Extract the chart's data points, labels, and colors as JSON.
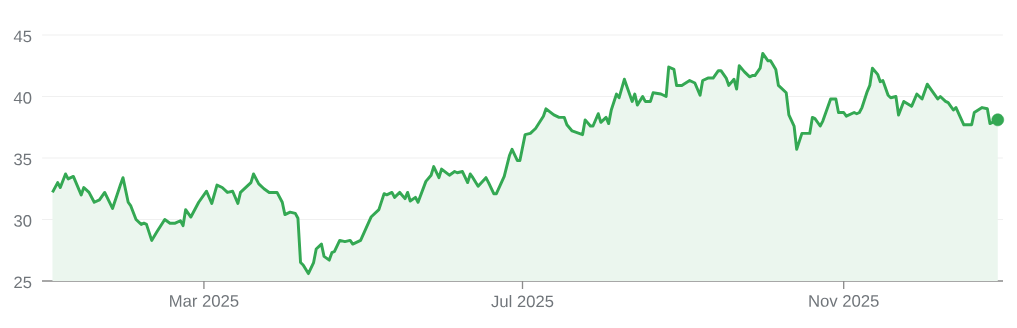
{
  "chart_data": {
    "type": "area",
    "grid": "y",
    "xlim": [
      "2024-12-29",
      "2026-01-01"
    ],
    "ylim": [
      25,
      45
    ],
    "yticks": [
      25,
      30,
      35,
      40,
      45
    ],
    "xticks": [
      {
        "value": "2025-03-01",
        "label": "Mar 2025"
      },
      {
        "value": "2025-07-01",
        "label": "Jul 2025"
      },
      {
        "value": "2025-11-01",
        "label": "Nov 2025"
      }
    ],
    "series": [
      {
        "color": "#34a853",
        "x": [
          "2025-01-02",
          "2025-01-04",
          "2025-01-05",
          "2025-01-07",
          "2025-01-08",
          "2025-01-10",
          "2025-01-13",
          "2025-01-14",
          "2025-01-16",
          "2025-01-18",
          "2025-01-20",
          "2025-01-22",
          "2025-01-25",
          "2025-01-28",
          "2025-01-29",
          "2025-01-31",
          "2025-02-01",
          "2025-02-03",
          "2025-02-05",
          "2025-02-06",
          "2025-02-07",
          "2025-02-09",
          "2025-02-11",
          "2025-02-14",
          "2025-02-16",
          "2025-02-18",
          "2025-02-20",
          "2025-02-21",
          "2025-02-22",
          "2025-02-24",
          "2025-02-27",
          "2025-03-02",
          "2025-03-04",
          "2025-03-06",
          "2025-03-08",
          "2025-03-10",
          "2025-03-12",
          "2025-03-14",
          "2025-03-15",
          "2025-03-19",
          "2025-03-20",
          "2025-03-22",
          "2025-03-24",
          "2025-03-26",
          "2025-03-29",
          "2025-03-31",
          "2025-04-01",
          "2025-04-03",
          "2025-04-05",
          "2025-04-06",
          "2025-04-07",
          "2025-04-08",
          "2025-04-10",
          "2025-04-12",
          "2025-04-13",
          "2025-04-15",
          "2025-04-16",
          "2025-04-18",
          "2025-04-19",
          "2025-04-20",
          "2025-04-22",
          "2025-04-24",
          "2025-04-26",
          "2025-04-27",
          "2025-04-30",
          "2025-05-04",
          "2025-05-07",
          "2025-05-09",
          "2025-05-10",
          "2025-05-12",
          "2025-05-13",
          "2025-05-15",
          "2025-05-17",
          "2025-05-18",
          "2025-05-19",
          "2025-05-21",
          "2025-05-22",
          "2025-05-25",
          "2025-05-27",
          "2025-05-28",
          "2025-05-30",
          "2025-05-31",
          "2025-06-03",
          "2025-06-05",
          "2025-06-06",
          "2025-06-08",
          "2025-06-10",
          "2025-06-11",
          "2025-06-12",
          "2025-06-14",
          "2025-06-17",
          "2025-06-18",
          "2025-06-20",
          "2025-06-21",
          "2025-06-24",
          "2025-06-26",
          "2025-06-27",
          "2025-06-29",
          "2025-06-30",
          "2025-07-02",
          "2025-07-04",
          "2025-07-06",
          "2025-07-09",
          "2025-07-10",
          "2025-07-13",
          "2025-07-15",
          "2025-07-17",
          "2025-07-18",
          "2025-07-20",
          "2025-07-24",
          "2025-07-25",
          "2025-07-27",
          "2025-07-28",
          "2025-07-30",
          "2025-07-31",
          "2025-08-02",
          "2025-08-03",
          "2025-08-04",
          "2025-08-06",
          "2025-08-07",
          "2025-08-09",
          "2025-08-10",
          "2025-08-12",
          "2025-08-13",
          "2025-08-14",
          "2025-08-16",
          "2025-08-17",
          "2025-08-19",
          "2025-08-20",
          "2025-08-23",
          "2025-08-25",
          "2025-08-26",
          "2025-08-28",
          "2025-08-29",
          "2025-08-31",
          "2025-09-03",
          "2025-09-05",
          "2025-09-07",
          "2025-09-08",
          "2025-09-10",
          "2025-09-12",
          "2025-09-14",
          "2025-09-15",
          "2025-09-17",
          "2025-09-18",
          "2025-09-20",
          "2025-09-21",
          "2025-09-22",
          "2025-09-24",
          "2025-09-26",
          "2025-09-27",
          "2025-09-28",
          "2025-09-30",
          "2025-10-01",
          "2025-10-03",
          "2025-10-04",
          "2025-10-06",
          "2025-10-07",
          "2025-10-10",
          "2025-10-11",
          "2025-10-13",
          "2025-10-14",
          "2025-10-16",
          "2025-10-17",
          "2025-10-19",
          "2025-10-20",
          "2025-10-21",
          "2025-10-23",
          "2025-10-24",
          "2025-10-27",
          "2025-10-29",
          "2025-10-30",
          "2025-11-01",
          "2025-11-02",
          "2025-11-05",
          "2025-11-06",
          "2025-11-07",
          "2025-11-08",
          "2025-11-10",
          "2025-11-11",
          "2025-11-12",
          "2025-11-14",
          "2025-11-15",
          "2025-11-16",
          "2025-11-18",
          "2025-11-19",
          "2025-11-21",
          "2025-11-22",
          "2025-11-24",
          "2025-11-27",
          "2025-11-29",
          "2025-12-01",
          "2025-12-03",
          "2025-12-04",
          "2025-12-07",
          "2025-12-08",
          "2025-12-10",
          "2025-12-11",
          "2025-12-13",
          "2025-12-14",
          "2025-12-17",
          "2025-12-20",
          "2025-12-21",
          "2025-12-24",
          "2025-12-26",
          "2025-12-27",
          "2025-12-30"
        ],
        "values": [
          32.2,
          33.0,
          32.6,
          33.7,
          33.3,
          33.5,
          32.0,
          32.6,
          32.2,
          31.4,
          31.6,
          32.2,
          30.9,
          32.8,
          33.4,
          31.4,
          31.1,
          30.0,
          29.6,
          29.7,
          29.6,
          28.3,
          29.0,
          30.0,
          29.7,
          29.7,
          29.9,
          29.5,
          30.8,
          30.2,
          31.4,
          32.3,
          31.3,
          32.8,
          32.6,
          32.2,
          32.3,
          31.3,
          32.2,
          33.0,
          33.7,
          32.9,
          32.5,
          32.2,
          32.2,
          31.4,
          30.4,
          30.6,
          30.5,
          30.1,
          26.5,
          26.3,
          25.6,
          26.5,
          27.6,
          28.0,
          27.0,
          26.7,
          27.3,
          27.4,
          28.3,
          28.2,
          28.3,
          28.0,
          28.3,
          30.2,
          30.8,
          32.1,
          32.0,
          32.2,
          31.8,
          32.2,
          31.7,
          32.2,
          31.5,
          31.8,
          31.4,
          33.1,
          33.6,
          34.3,
          33.4,
          34.1,
          33.6,
          33.9,
          33.8,
          33.9,
          33.0,
          33.7,
          33.4,
          32.7,
          33.4,
          33.0,
          32.1,
          32.1,
          33.5,
          35.2,
          35.7,
          34.8,
          34.8,
          36.9,
          37.0,
          37.4,
          38.4,
          39.0,
          38.5,
          38.3,
          38.3,
          37.7,
          37.2,
          36.9,
          38.1,
          37.6,
          37.6,
          38.6,
          37.9,
          38.3,
          37.8,
          38.9,
          40.2,
          39.9,
          41.4,
          40.8,
          39.6,
          40.2,
          39.3,
          40.0,
          39.6,
          39.6,
          40.3,
          40.2,
          40.0,
          42.4,
          42.2,
          40.9,
          40.9,
          41.3,
          41.1,
          40.1,
          41.3,
          41.5,
          41.5,
          42.1,
          42.1,
          41.5,
          40.9,
          41.4,
          40.6,
          42.5,
          42.0,
          41.6,
          41.7,
          41.7,
          42.3,
          43.5,
          42.9,
          42.9,
          42.2,
          40.9,
          40.3,
          38.5,
          37.6,
          35.7,
          37.0,
          37.0,
          37.0,
          38.3,
          38.2,
          37.6,
          38.0,
          39.8,
          39.8,
          38.7,
          38.7,
          38.4,
          38.7,
          38.6,
          38.7,
          39.1,
          40.4,
          40.9,
          42.3,
          41.8,
          41.2,
          41.3,
          40.1,
          39.9,
          40.0,
          38.5,
          39.6,
          39.2,
          40.2,
          39.8,
          41.0,
          40.7,
          39.8,
          40.0,
          39.6,
          39.5,
          38.9,
          39.1,
          37.7,
          37.7,
          38.7,
          39.1,
          39.0,
          37.8,
          38.1
        ]
      },
      {
        "type": "scatter",
        "marker": "circle",
        "color": "#34a853",
        "x": [
          "2025-12-30"
        ],
        "values": [
          38.1
        ]
      }
    ]
  }
}
